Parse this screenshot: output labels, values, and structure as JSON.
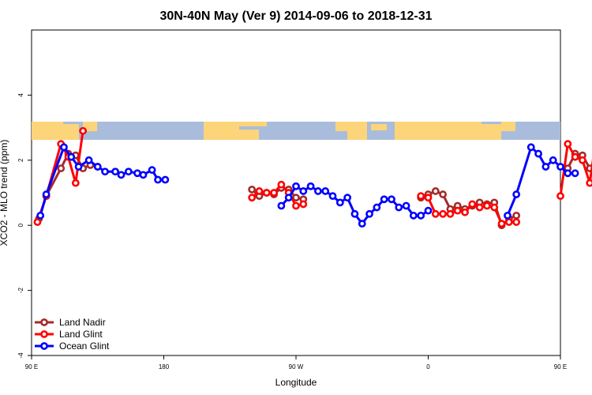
{
  "chart_data": {
    "type": "line",
    "title": "30N-40N May (Ver 9)   2014-09-06 to 2018-12-31",
    "xlabel": "Longitude",
    "ylabel": "XCO2 - MLO trend (ppm)",
    "xlim": [
      90,
      450
    ],
    "ylim": [
      -4,
      6
    ],
    "x_ticks": [
      {
        "value": 90,
        "label": "90 E"
      },
      {
        "value": 180,
        "label": "180"
      },
      {
        "value": 270,
        "label": "90 W"
      },
      {
        "value": 360,
        "label": "0"
      },
      {
        "value": 450,
        "label": "90 E"
      },
      {
        "value": 540,
        "label": "180"
      }
    ],
    "y_ticks": [
      {
        "value": -4,
        "label": "-4"
      },
      {
        "value": -2,
        "label": "-2"
      },
      {
        "value": 0,
        "label": "0"
      },
      {
        "value": 2,
        "label": "2"
      },
      {
        "value": 4,
        "label": "4"
      }
    ],
    "grid": false,
    "legend_position": "bottom-left",
    "map_strip": {
      "y_range": [
        2.6,
        3.2
      ],
      "ocean_color": "#a9bcdc",
      "land_color": "#fcd47a"
    },
    "series": [
      {
        "name": "Land Nadir",
        "color": "#a52a2a",
        "segments": [
          [
            [
              95,
              0.2
            ],
            [
              100,
              0.9
            ],
            [
              110,
              1.75
            ],
            [
              115,
              2.2
            ],
            [
              120,
              2.15
            ],
            [
              125,
              1.75
            ],
            [
              130,
              1.85
            ],
            [
              135,
              1.8
            ]
          ],
          [
            [
              240,
              1.1
            ],
            [
              245,
              0.9
            ],
            [
              250,
              1.0
            ],
            [
              255,
              0.95
            ],
            [
              260,
              1.15
            ],
            [
              265,
              1.1
            ],
            [
              270,
              0.85
            ],
            [
              275,
              0.8
            ]
          ],
          [
            [
              355,
              0.85
            ],
            [
              360,
              0.95
            ],
            [
              365,
              1.05
            ],
            [
              370,
              0.95
            ],
            [
              375,
              0.5
            ],
            [
              380,
              0.6
            ],
            [
              385,
              0.5
            ],
            [
              390,
              0.6
            ],
            [
              395,
              0.7
            ],
            [
              400,
              0.65
            ],
            [
              405,
              0.7
            ],
            [
              410,
              0.0
            ],
            [
              415,
              0.2
            ],
            [
              420,
              0.3
            ]
          ],
          [
            [
              455,
              1.75
            ],
            [
              460,
              2.2
            ],
            [
              465,
              2.15
            ],
            [
              470,
              1.75
            ],
            [
              475,
              1.85
            ]
          ]
        ]
      },
      {
        "name": "Land Glint",
        "color": "#ff0000",
        "segments": [
          [
            [
              94,
              0.1
            ],
            [
              100,
              0.9
            ],
            [
              110,
              2.5
            ],
            [
              115,
              2.1
            ],
            [
              120,
              1.3
            ],
            [
              125,
              2.9
            ]
          ],
          [
            [
              240,
              0.85
            ],
            [
              245,
              1.05
            ],
            [
              250,
              1.0
            ],
            [
              255,
              1.0
            ],
            [
              260,
              1.25
            ],
            [
              265,
              1.0
            ],
            [
              270,
              0.6
            ],
            [
              275,
              0.65
            ]
          ],
          [
            [
              355,
              0.9
            ],
            [
              360,
              0.85
            ],
            [
              365,
              0.35
            ],
            [
              370,
              0.35
            ],
            [
              375,
              0.35
            ],
            [
              380,
              0.45
            ],
            [
              385,
              0.4
            ],
            [
              390,
              0.65
            ],
            [
              395,
              0.55
            ],
            [
              400,
              0.6
            ],
            [
              405,
              0.55
            ],
            [
              410,
              0.05
            ],
            [
              415,
              0.1
            ],
            [
              420,
              0.1
            ]
          ],
          [
            [
              450,
              0.9
            ],
            [
              455,
              2.5
            ],
            [
              460,
              2.1
            ],
            [
              465,
              2.0
            ],
            [
              470,
              1.3
            ],
            [
              475,
              2.9
            ]
          ]
        ]
      },
      {
        "name": "Ocean Glint",
        "color": "#0000ff",
        "segments": [
          [
            [
              96,
              0.3
            ],
            [
              100,
              0.95
            ],
            [
              112,
              2.4
            ],
            [
              117,
              2.1
            ],
            [
              122,
              1.8
            ],
            [
              129,
              2.0
            ],
            [
              135,
              1.8
            ],
            [
              140,
              1.65
            ],
            [
              147,
              1.65
            ],
            [
              151,
              1.55
            ],
            [
              156,
              1.65
            ],
            [
              162,
              1.6
            ],
            [
              166,
              1.55
            ],
            [
              172,
              1.7
            ],
            [
              176,
              1.4
            ],
            [
              181,
              1.4
            ]
          ],
          [
            [
              260,
              0.6
            ],
            [
              265,
              0.85
            ],
            [
              270,
              1.2
            ],
            [
              275,
              1.05
            ],
            [
              280,
              1.2
            ],
            [
              285,
              1.05
            ],
            [
              290,
              1.05
            ],
            [
              295,
              0.9
            ],
            [
              300,
              0.7
            ],
            [
              305,
              0.85
            ],
            [
              310,
              0.35
            ],
            [
              315,
              0.05
            ],
            [
              320,
              0.35
            ],
            [
              325,
              0.55
            ],
            [
              330,
              0.8
            ],
            [
              335,
              0.8
            ],
            [
              340,
              0.55
            ],
            [
              345,
              0.6
            ],
            [
              350,
              0.3
            ],
            [
              355,
              0.3
            ],
            [
              360,
              0.45
            ]
          ],
          [
            [
              414,
              0.3
            ],
            [
              420,
              0.95
            ],
            [
              430,
              2.4
            ],
            [
              435,
              2.2
            ],
            [
              440,
              1.8
            ],
            [
              445,
              2.0
            ],
            [
              450,
              1.8
            ],
            [
              455,
              1.6
            ],
            [
              460,
              1.6
            ]
          ]
        ]
      }
    ]
  }
}
